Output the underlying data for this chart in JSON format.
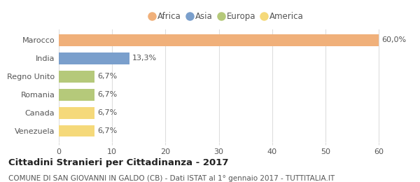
{
  "categories": [
    "Venezuela",
    "Canada",
    "Romania",
    "Regno Unito",
    "India",
    "Marocco"
  ],
  "values": [
    6.7,
    6.7,
    6.7,
    6.7,
    13.3,
    60.0
  ],
  "bar_colors": [
    "#f5d97a",
    "#f5d97a",
    "#b5c97a",
    "#b5c97a",
    "#7a9fcc",
    "#f0b07a"
  ],
  "value_labels": [
    "6,7%",
    "6,7%",
    "6,7%",
    "6,7%",
    "13,3%",
    "60,0%"
  ],
  "xlim": [
    0,
    63
  ],
  "xticks": [
    0,
    10,
    20,
    30,
    40,
    50,
    60
  ],
  "title": "Cittadini Stranieri per Cittadinanza - 2017",
  "subtitle": "COMUNE DI SAN GIOVANNI IN GALDO (CB) - Dati ISTAT al 1° gennaio 2017 - TUTTITALIA.IT",
  "legend_labels": [
    "Africa",
    "Asia",
    "Europa",
    "America"
  ],
  "legend_colors": [
    "#f0b07a",
    "#7a9fcc",
    "#b5c97a",
    "#f5d97a"
  ],
  "background_color": "#ffffff",
  "bar_height": 0.65,
  "grid_color": "#dddddd",
  "text_color": "#555555",
  "title_fontsize": 9.5,
  "subtitle_fontsize": 7.5,
  "tick_fontsize": 8,
  "label_fontsize": 8,
  "legend_fontsize": 8.5
}
